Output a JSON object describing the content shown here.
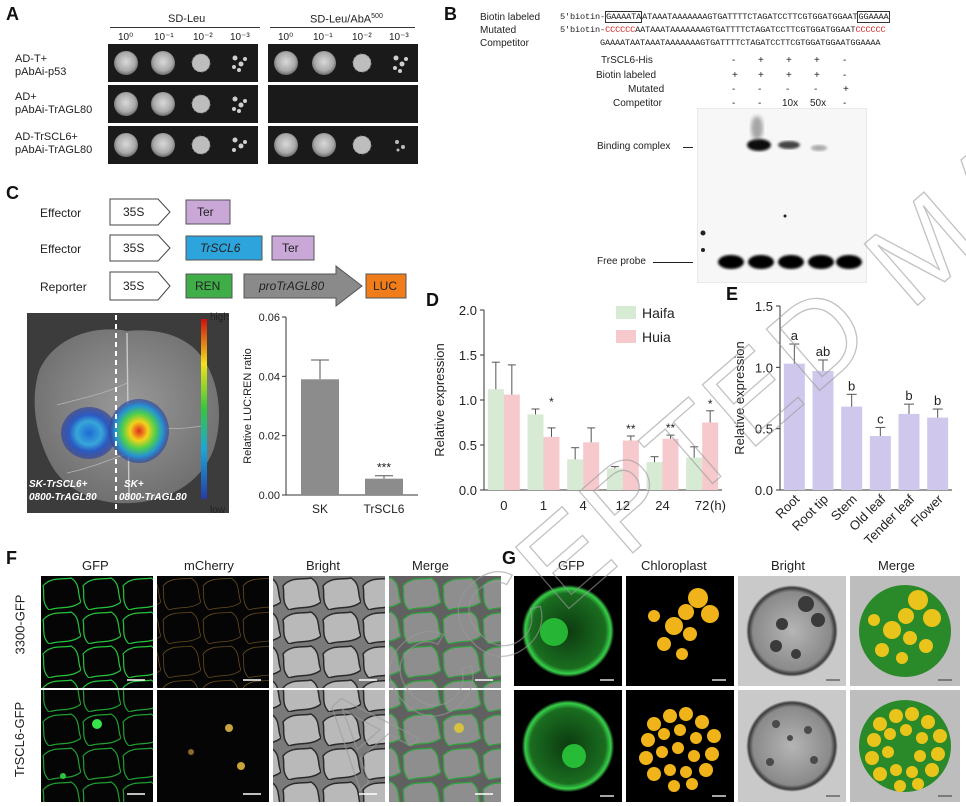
{
  "panel_labels": [
    "A",
    "B",
    "C",
    "D",
    "E",
    "F",
    "G"
  ],
  "panelA": {
    "group1": "SD-Leu",
    "group2": "SD-Leu/AbA",
    "group2_sup": "500",
    "dilutions": [
      "10⁰",
      "10⁻¹",
      "10⁻²",
      "10⁻³"
    ],
    "rows": [
      {
        "l1": "AD-T+",
        "l2": "pAbAi-p53"
      },
      {
        "l1": "AD+",
        "l2": "pAbAi-TrAGL80"
      },
      {
        "l1": "AD-TrSCL6+",
        "l2": "pAbAi-TrAGL80"
      }
    ]
  },
  "panelB": {
    "probe_labels": [
      "Biotin labeled",
      "Mutated",
      "Competitor"
    ],
    "seq_prefix": "5'biotin-",
    "wt_start": "GAAAATA",
    "seq_mid": "ATAAATAAAAAAAGTGATTTTCTAGATCCTTCGTGGATGGAAT",
    "wt_end": "GGAAAA",
    "mut_start": "CCCCCC",
    "mut_mid": "AATAAATAAAAAAAGTGATTTTCTAGATCCTTCGTGGATGGAAT",
    "mut_end": "CCCCCC",
    "comp_seq": "GAAAATAATAAATAAAAAAAGTGATTTTCTAGATCCTTCGTGGATGGAATGGAAAA",
    "conditions": [
      {
        "label": "TrSCL6-His",
        "values": [
          "-",
          "+",
          "+",
          "+",
          "-"
        ]
      },
      {
        "label": "Biotin labeled",
        "values": [
          "+",
          "+",
          "+",
          "+",
          "-"
        ]
      },
      {
        "label": "Mutated",
        "values": [
          "-",
          "-",
          "-",
          "-",
          "+"
        ]
      },
      {
        "label": "Competitor",
        "values": [
          "-",
          "-",
          "10x",
          "50x",
          "-"
        ]
      }
    ],
    "binding_label": "Binding complex",
    "free_label": "Free probe"
  },
  "panelC": {
    "rows": [
      {
        "name": "Effector",
        "promoter": "35S",
        "boxes": [
          "Ter"
        ]
      },
      {
        "name": "Effector",
        "promoter": "35S",
        "boxes": [
          "TrSCL6",
          "Ter"
        ]
      },
      {
        "name": "Reporter",
        "promoter": "35S",
        "boxes": [
          "REN",
          "proTrAGL80",
          "LUC"
        ]
      }
    ],
    "colorbar_high": "high",
    "colorbar_low": "low",
    "leaf_left_l1": "SK-TrSCL6+",
    "leaf_left_l2": "0800-TrAGL80",
    "leaf_right_l1": "SK+",
    "leaf_right_l2": "0800-TrAGL80",
    "colors": {
      "ter": "#c9a8d8",
      "trscl6": "#2ea4dd",
      "ren": "#3fae49",
      "pro": "#8a8a8a",
      "luc": "#f07d1a"
    }
  },
  "chart_data": [
    {
      "panel": "C",
      "type": "bar",
      "categories": [
        "SK",
        "TrSCL6"
      ],
      "values": [
        0.039,
        0.0055
      ],
      "errors": [
        0.0065,
        0.001
      ],
      "significance": [
        "",
        "***"
      ],
      "ylabel": "Relative LUC:REN ratio",
      "ylim": [
        0,
        0.06
      ],
      "yticks": [
        "0.00",
        "0.02",
        "0.04",
        "0.06"
      ],
      "bar_color": "#8c8c8c"
    },
    {
      "panel": "D",
      "type": "bar",
      "categories": [
        "0",
        "1",
        "4",
        "12",
        "24",
        "72"
      ],
      "x_unit": "(h)",
      "series": [
        {
          "name": "Haifa",
          "values": [
            1.12,
            0.84,
            0.34,
            0.24,
            0.31,
            0.36
          ],
          "errors": [
            0.3,
            0.06,
            0.13,
            0.02,
            0.06,
            0.12
          ]
        },
        {
          "name": "Huia",
          "values": [
            1.06,
            0.59,
            0.53,
            0.55,
            0.57,
            0.75
          ],
          "errors": [
            0.33,
            0.1,
            0.16,
            0.05,
            0.04,
            0.13
          ]
        }
      ],
      "significance": [
        "",
        "*",
        "",
        "**",
        "**",
        "*"
      ],
      "ylabel": "Relative expression",
      "ylim": [
        0,
        2.0
      ],
      "yticks": [
        "0.0",
        "0.5",
        "1.0",
        "1.5",
        "2.0"
      ],
      "colors": [
        "#d7ead3",
        "#f6c9cc"
      ]
    },
    {
      "panel": "E",
      "type": "bar",
      "categories": [
        "Root",
        "Root tip",
        "Stem",
        "Old leaf",
        "Tender leaf",
        "Flower"
      ],
      "values": [
        1.03,
        0.97,
        0.68,
        0.44,
        0.62,
        0.59
      ],
      "errors": [
        0.16,
        0.09,
        0.1,
        0.07,
        0.08,
        0.07
      ],
      "letters": [
        "a",
        "ab",
        "b",
        "c",
        "b",
        "b"
      ],
      "ylabel": "Relative expression",
      "ylim": [
        0,
        1.5
      ],
      "yticks": [
        "0.0",
        "0.5",
        "1.0",
        "1.5"
      ],
      "bar_color": "#cfc8ec"
    }
  ],
  "panelF": {
    "columns": [
      "GFP",
      "mCherry",
      "Bright",
      "Merge"
    ],
    "rows": [
      "3300-GFP",
      "TrSCL6-GFP"
    ]
  },
  "panelG": {
    "columns": [
      "GFP",
      "Chloroplast",
      "Bright",
      "Merge"
    ]
  },
  "watermark": "ACCEPTED MANUSCRIPT"
}
